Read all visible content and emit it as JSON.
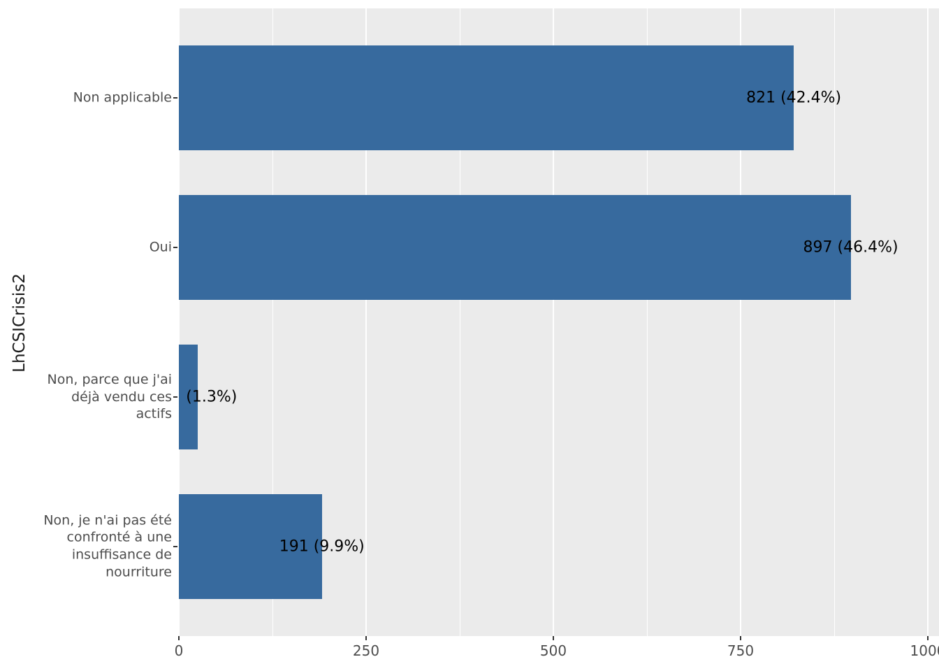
{
  "chart_data": {
    "type": "bar",
    "orientation": "horizontal",
    "title": "",
    "xlabel": "",
    "ylabel": "LhCSICrisis2",
    "categories": [
      "Non applicable",
      "Oui",
      "Non, parce que j'ai\ndéjà vendu ces\nactifs",
      "Non, je n'ai pas été\nconfronté à une\ninsuffisance de\nnourriture"
    ],
    "values": [
      821,
      897,
      25,
      191
    ],
    "bar_labels": [
      "821 (42.4%)",
      "897 (46.4%)",
      "(1.3%)",
      "191 (9.9%)"
    ],
    "x_ticks": [
      0,
      250,
      500,
      750,
      1000
    ],
    "x_minor_ticks": [
      125,
      375,
      625,
      875
    ],
    "xlim": [
      0,
      1000
    ],
    "legend": "none",
    "grid": "on",
    "panel_background": "#EBEBEB",
    "gridline_color": "#FFFFFF",
    "bar_color": "#376A9E",
    "axis_text_color": "#4D4D4D",
    "tick_color": "#333333",
    "label_color": "#000000"
  }
}
